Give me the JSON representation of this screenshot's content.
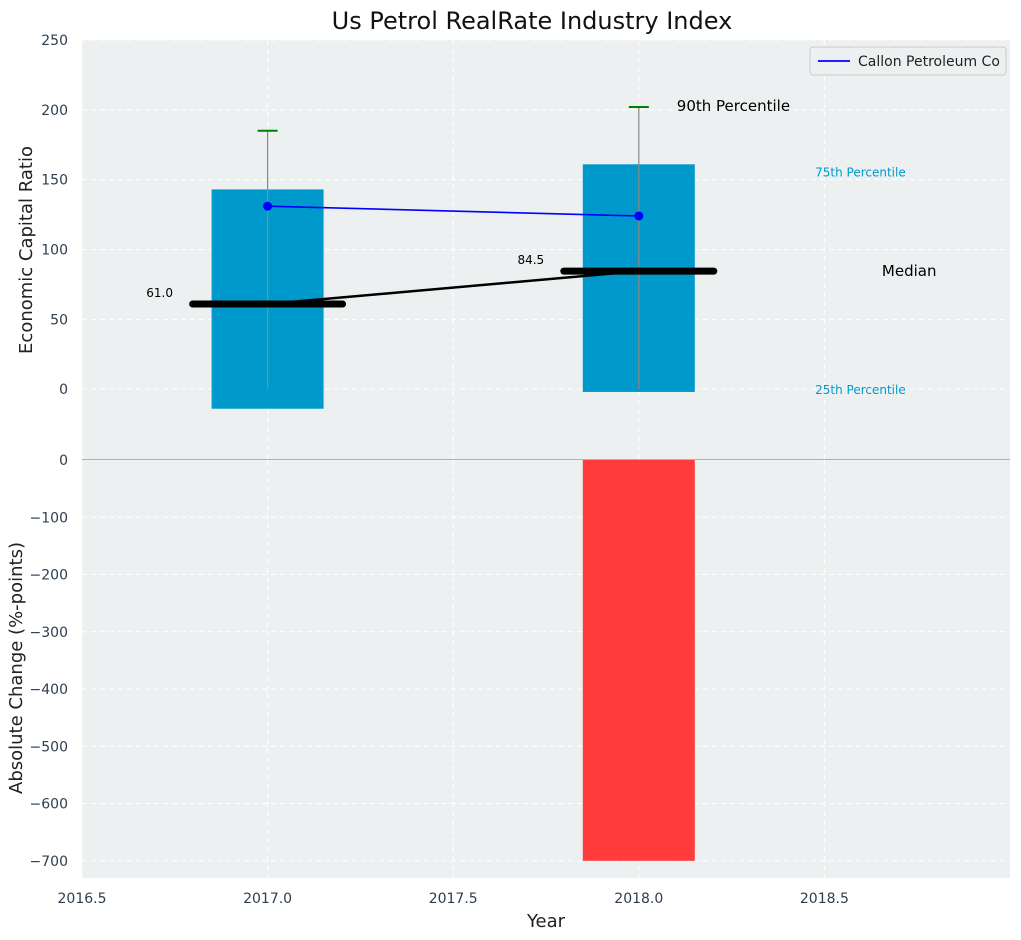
{
  "title": "Us Petrol RealRate Industry Index",
  "xlabel": "Year",
  "ylabel_top": "Economic Capital Ratio",
  "ylabel_bottom": "Absolute Change (%-points)",
  "legend": {
    "label": "Callon Petroleum Co",
    "placement": "top-right"
  },
  "annotations": {
    "p90": "90th Percentile",
    "p75": "75th Percentile",
    "median": "Median",
    "p25": "25th Percentile"
  },
  "colors": {
    "background": "#ecf0f1",
    "box": "#0099cc",
    "median": "#000000",
    "company": "#0000ff",
    "whisker_cap": "#008000",
    "change_negative": "#ff3b3b",
    "p75_text": "#0099cc",
    "grid": "#ffffff"
  },
  "chart_data": [
    {
      "type": "bar",
      "panel": "top",
      "x": [
        2017.0,
        2018.0
      ],
      "p25": [
        -14,
        -2
      ],
      "p75": [
        143,
        161
      ],
      "median": [
        61.0,
        84.5
      ],
      "median_labels": [
        "61.0",
        "84.5"
      ],
      "p90": [
        185,
        202
      ],
      "whisker_low": [
        0,
        0
      ],
      "company": {
        "name": "Callon Petroleum Co",
        "values": [
          131,
          124
        ]
      },
      "xlim": [
        2016.5,
        2019.0
      ],
      "ylim": [
        -50,
        250
      ],
      "yticks": [
        0,
        50,
        100,
        150,
        200,
        250
      ],
      "ytick_labels": [
        "0",
        "50",
        "100",
        "150",
        "200",
        "250"
      ],
      "grid": true
    },
    {
      "type": "bar",
      "panel": "bottom",
      "x": [
        2018.0
      ],
      "values": [
        -700
      ],
      "xlim": [
        2016.5,
        2019.0
      ],
      "ylim": [
        -730,
        0
      ],
      "yticks": [
        0,
        -100,
        -200,
        -300,
        -400,
        -500,
        -600,
        -700
      ],
      "ytick_labels": [
        "0",
        "−100",
        "−200",
        "−300",
        "−400",
        "−500",
        "−600",
        "−700"
      ],
      "xticks": [
        2016.5,
        2017.0,
        2017.5,
        2018.0,
        2018.5
      ],
      "xtick_labels": [
        "2016.5",
        "2017.0",
        "2017.5",
        "2018.0",
        "2018.5"
      ],
      "grid": true
    }
  ]
}
